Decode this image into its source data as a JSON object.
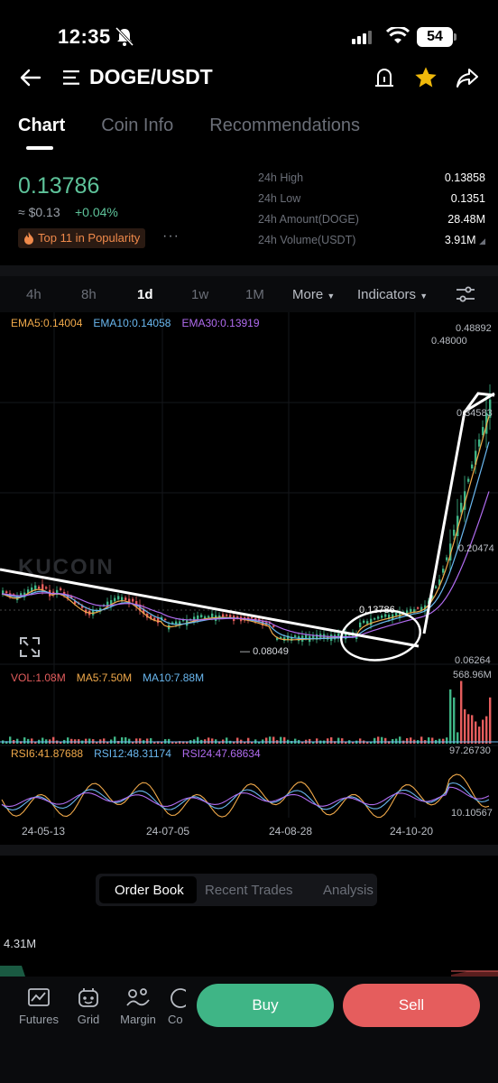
{
  "status_bar": {
    "time": "12:35",
    "battery": "54"
  },
  "header": {
    "pair": "DOGE/USDT"
  },
  "tabs": [
    {
      "label": "Chart"
    },
    {
      "label": "Coin Info"
    },
    {
      "label": "Recommendations"
    }
  ],
  "price_block": {
    "last_price": "0.13786",
    "fiat_price": "≈ $0.13",
    "change_pct": "+0.04%",
    "popularity_badge": "Top 11 in Popularity",
    "more": "···"
  },
  "stats": [
    {
      "label": "24h High",
      "value": "0.13858"
    },
    {
      "label": "24h Low",
      "value": "0.1351"
    },
    {
      "label": "24h Amount(DOGE)",
      "value": "28.48M"
    },
    {
      "label": "24h Volume(USDT)",
      "value": "3.91M"
    }
  ],
  "intervals": [
    {
      "label": "4h"
    },
    {
      "label": "8h"
    },
    {
      "label": "1d"
    },
    {
      "label": "1w"
    },
    {
      "label": "1M"
    },
    {
      "label": "More"
    },
    {
      "label": "Indicators"
    }
  ],
  "indicators": {
    "ema5": "EMA5:0.14004",
    "ema10": "EMA10:0.14058",
    "ema30": "EMA30:0.13919",
    "vol": "VOL:1.08M",
    "ma5": "MA5:7.50M",
    "ma10": "MA10:7.88M",
    "rsi6": "RSI6:41.87688",
    "rsi12": "RSI12:48.31174",
    "rsi24": "RSI24:47.68634"
  },
  "chart_labels": {
    "watermark": "KUCOIN",
    "high_axis": "0.48892",
    "max_marker": "0.48000",
    "axis_mid1": "0.34583",
    "axis_mid2": "0.20474",
    "current_price_marker": "0.13786",
    "min_marker": "0.08049",
    "low_axis": "0.06264",
    "vol_axis": "568.96M",
    "rsi_top": "97.26730",
    "rsi_bottom": "10.10567",
    "dates": [
      "24-05-13",
      "24-07-05",
      "24-08-28",
      "24-10-20"
    ]
  },
  "colors": {
    "ema5": "#f0a94a",
    "ema10": "#6ab8f0",
    "ema30": "#b16cf0",
    "up": "#3fb586",
    "down": "#e55d5d"
  },
  "order_book": {
    "tabs": [
      {
        "label": "Order Book"
      },
      {
        "label": "Recent Trades"
      },
      {
        "label": "Analysis"
      }
    ],
    "depth_value": "4.31M"
  },
  "bottom_bar": {
    "tools": [
      {
        "label": "Futures",
        "icon": "futures-icon"
      },
      {
        "label": "Grid",
        "icon": "grid-bot-icon"
      },
      {
        "label": "Margin",
        "icon": "margin-icon"
      },
      {
        "label": "Co",
        "icon": "copy-icon"
      }
    ],
    "buy": "Buy",
    "sell": "Sell"
  }
}
